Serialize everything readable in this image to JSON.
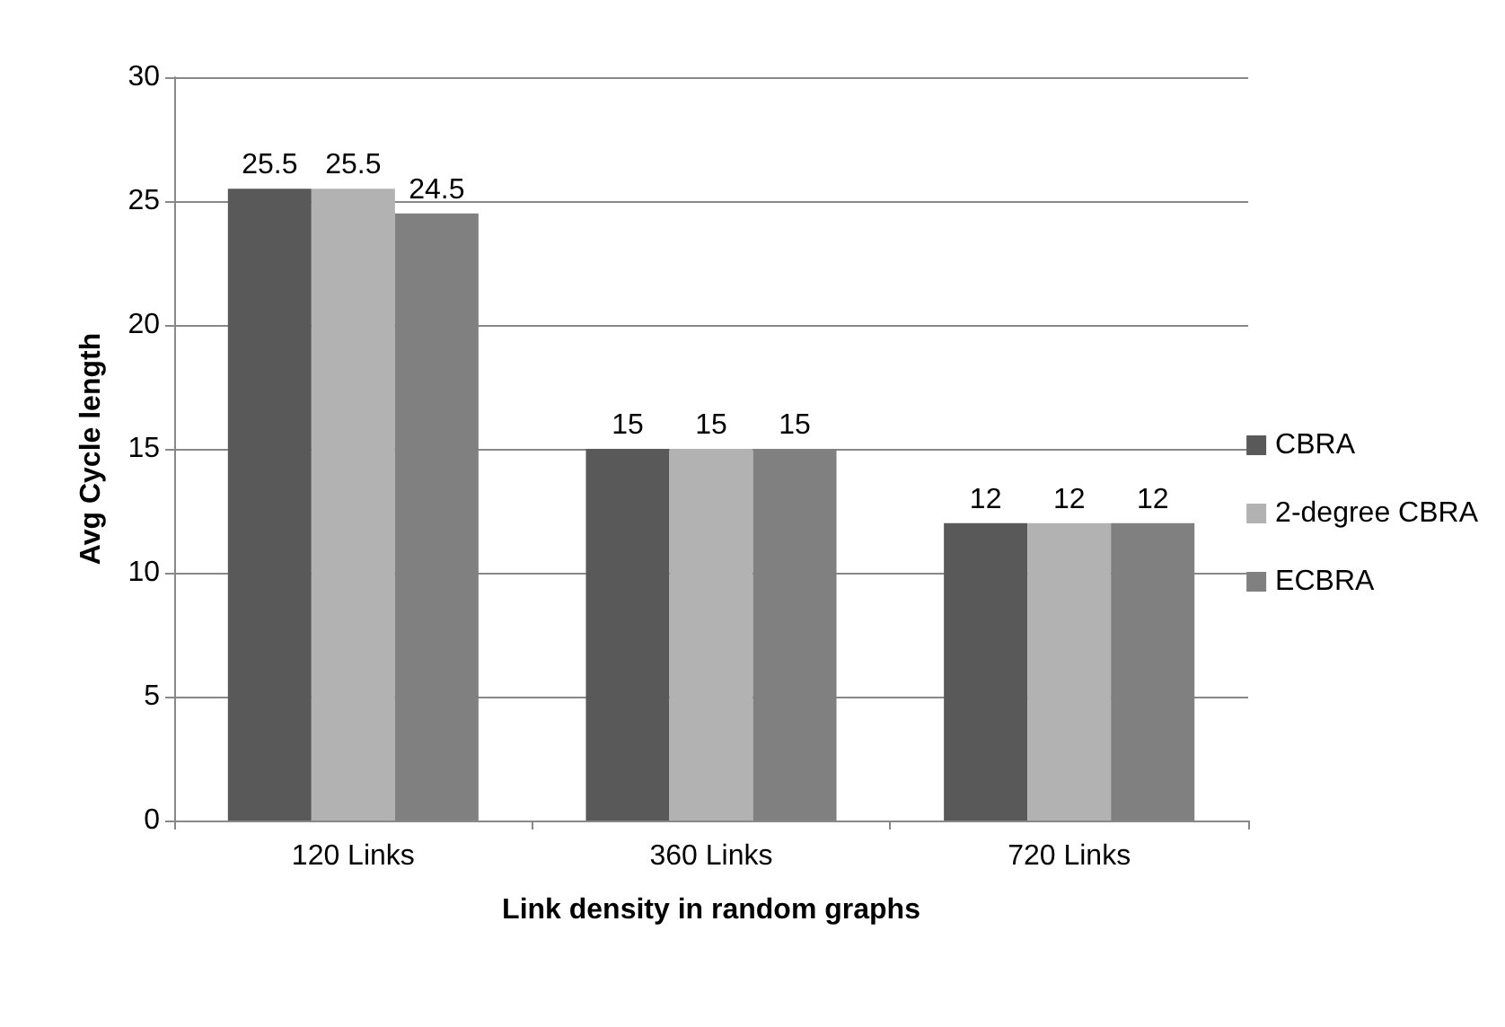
{
  "chart_data": {
    "type": "bar",
    "categories": [
      "120 Links",
      "360 Links",
      "720 Links"
    ],
    "series": [
      {
        "name": "CBRA",
        "color": "#595959",
        "values": [
          25.5,
          15,
          12
        ]
      },
      {
        "name": "2-degree CBRA",
        "color": "#b2b2b2",
        "values": [
          25.5,
          15,
          12
        ]
      },
      {
        "name": "ECBRA",
        "color": "#808080",
        "values": [
          24.5,
          15,
          12
        ]
      }
    ],
    "xlabel": "Link density in random graphs",
    "ylabel": "Avg Cycle length",
    "ylim": [
      0,
      30
    ],
    "yticks": [
      0,
      5,
      10,
      15,
      20,
      25,
      30
    ],
    "grid": "y",
    "legend": "right",
    "data_labels": true
  }
}
